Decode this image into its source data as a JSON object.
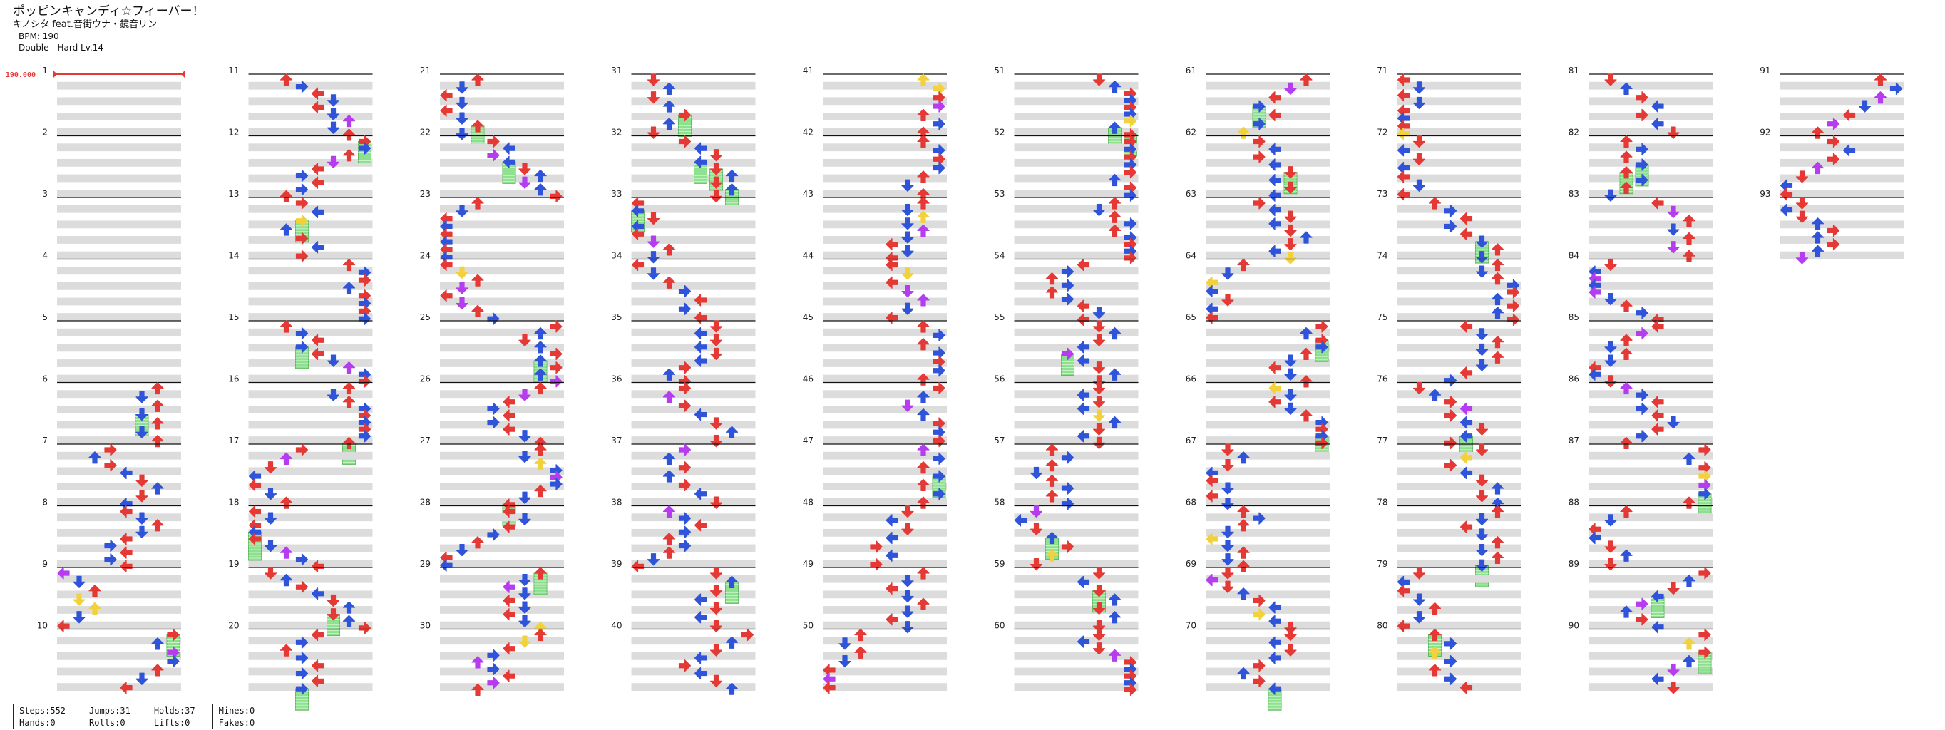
{
  "song": {
    "title": "ポッピンキャンディ☆フィーバー！",
    "artist": "キノシタ feat.音街ウナ・鏡音リン",
    "bpm_text": "BPM: 190",
    "difficulty_text": "Double - Hard Lv.14"
  },
  "bpm_marker": "190.000",
  "measures": [
    "1",
    "2",
    "3",
    "4",
    "5",
    "6",
    "7",
    "8",
    "9",
    "10",
    "11",
    "12",
    "13",
    "14",
    "15",
    "16",
    "17",
    "18",
    "19",
    "20",
    "21",
    "22",
    "23",
    "24",
    "25",
    "26",
    "27",
    "28",
    "29",
    "30",
    "31",
    "32",
    "33",
    "34",
    "35",
    "36",
    "37",
    "38",
    "39",
    "40",
    "41",
    "42",
    "43",
    "44",
    "45",
    "46",
    "47",
    "48",
    "49",
    "50",
    "51",
    "52",
    "53",
    "54",
    "55",
    "56",
    "57",
    "58",
    "59",
    "60",
    "61",
    "62",
    "63",
    "64",
    "65",
    "66",
    "67",
    "68",
    "69",
    "70",
    "71",
    "72",
    "73",
    "74",
    "75",
    "76",
    "77",
    "78",
    "79",
    "80",
    "81",
    "82",
    "83",
    "84",
    "85",
    "86",
    "87",
    "88",
    "89",
    "90",
    "91",
    "92",
    "93"
  ],
  "stats": {
    "steps": "Steps:552",
    "hands": "Hands:0",
    "jumps": "Jumps:31",
    "rolls": "Rolls:0",
    "holds": "Holds:37",
    "lifts": "Lifts:0",
    "mines": "Mines:0",
    "fakes": "Fakes:0"
  },
  "colors": {
    "quarter_note": "#e53935",
    "eighth_note": "#2f54d9",
    "sixteenth_note": "#b63cf0",
    "twelfth_note": "#f2d23c",
    "hold_body": "#8de08d",
    "row_shade": "#dcdcdc",
    "measure_line": "#111111"
  },
  "icons": {
    "arrow": "arrow-icon",
    "hold": "hold-icon"
  }
}
